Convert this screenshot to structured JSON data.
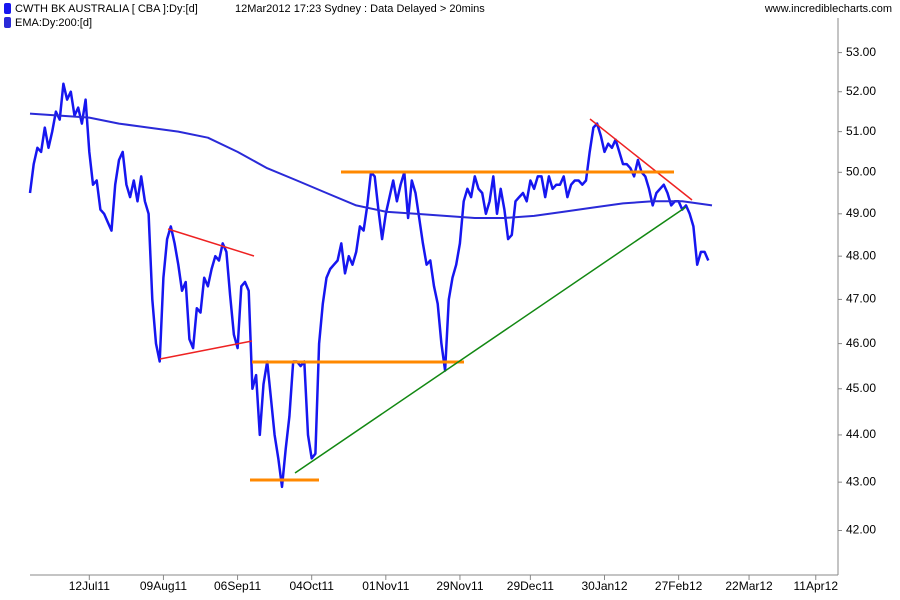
{
  "chart_data": {
    "type": "line",
    "subtitle": "12Mar2012 17:23 Sydney : Data Delayed > 20mins",
    "source": "www.incrediblecharts.com",
    "log_scale": true,
    "xlim": [
      0,
      218
    ],
    "xticks": [
      {
        "value": 16,
        "label": "12Jul11"
      },
      {
        "value": 36,
        "label": "09Aug11"
      },
      {
        "value": 56,
        "label": "06Sep11"
      },
      {
        "value": 76,
        "label": "04Oct11"
      },
      {
        "value": 96,
        "label": "01Nov11"
      },
      {
        "value": 116,
        "label": "29Nov11"
      },
      {
        "value": 135,
        "label": "29Dec11"
      },
      {
        "value": 155,
        "label": "30Jan12"
      },
      {
        "value": 175,
        "label": "27Feb12"
      },
      {
        "value": 194,
        "label": "22Mar12"
      },
      {
        "value": 212,
        "label": "11Apr12"
      }
    ],
    "ylim": [
      41.1,
      53.9
    ],
    "yticks": [
      {
        "value": 42,
        "label": "42.00"
      },
      {
        "value": 43,
        "label": "43.00"
      },
      {
        "value": 44,
        "label": "44.00"
      },
      {
        "value": 45,
        "label": "45.00"
      },
      {
        "value": 46,
        "label": "46.00"
      },
      {
        "value": 47,
        "label": "47.00"
      },
      {
        "value": 48,
        "label": "48.00"
      },
      {
        "value": 49,
        "label": "49.00"
      },
      {
        "value": 50,
        "label": "50.00"
      },
      {
        "value": 51,
        "label": "51.00"
      },
      {
        "value": 52,
        "label": "52.00"
      },
      {
        "value": 53,
        "label": "53.00"
      }
    ],
    "series": [
      {
        "name": "CWTH BK AUSTRALIA [ CBA ]:Dy:[d]",
        "color": "#1616f0",
        "x": [
          0,
          1,
          2,
          3,
          4,
          5,
          6,
          7,
          8,
          9,
          10,
          11,
          12,
          13,
          14,
          15,
          16,
          17,
          18,
          19,
          20,
          21,
          22,
          23,
          24,
          25,
          26,
          27,
          28,
          29,
          30,
          31,
          32,
          33,
          34,
          35,
          36,
          37,
          38,
          39,
          40,
          41,
          42,
          43,
          44,
          45,
          46,
          47,
          48,
          49,
          50,
          51,
          52,
          53,
          54,
          55,
          56,
          57,
          58,
          59,
          60,
          61,
          62,
          63,
          64,
          65,
          66,
          67,
          68,
          69,
          70,
          71,
          72,
          73,
          74,
          75,
          76,
          77,
          78,
          79,
          80,
          81,
          82,
          83,
          84,
          85,
          86,
          87,
          88,
          89,
          90,
          91,
          92,
          93,
          94,
          95,
          96,
          97,
          98,
          99,
          100,
          101,
          102,
          103,
          104,
          105,
          106,
          107,
          108,
          109,
          110,
          111,
          112,
          113,
          114,
          115,
          116,
          117,
          118,
          119,
          120,
          121,
          122,
          123,
          124,
          125,
          126,
          127,
          128,
          129,
          130,
          131,
          132,
          133,
          134,
          135,
          136,
          137,
          138,
          139,
          140,
          141,
          142,
          143,
          144,
          145,
          146,
          147,
          148,
          149,
          150,
          151,
          152,
          153,
          154,
          155,
          156,
          157,
          158,
          159,
          160,
          161,
          162,
          163,
          164,
          165,
          166,
          167,
          168,
          169,
          170,
          171,
          172,
          173,
          174,
          175,
          176,
          177,
          178,
          179,
          180,
          181,
          182,
          183
        ],
        "values": [
          49.5,
          50.2,
          50.6,
          50.5,
          51.1,
          50.6,
          51.0,
          51.5,
          51.3,
          52.2,
          51.8,
          52.0,
          51.4,
          51.6,
          51.2,
          51.8,
          50.5,
          49.7,
          49.8,
          49.1,
          49.0,
          48.8,
          48.6,
          49.7,
          50.3,
          50.5,
          49.7,
          49.4,
          49.8,
          49.3,
          49.9,
          49.3,
          49.0,
          47.0,
          46.0,
          45.6,
          47.5,
          48.4,
          48.7,
          48.3,
          47.8,
          47.2,
          47.4,
          46.1,
          45.9,
          46.8,
          46.7,
          47.5,
          47.3,
          47.7,
          48.0,
          47.9,
          48.3,
          48.1,
          47.1,
          46.2,
          45.9,
          47.3,
          47.4,
          47.2,
          45.0,
          45.3,
          44.0,
          45.1,
          45.6,
          44.8,
          44.0,
          43.5,
          42.9,
          43.7,
          44.4,
          45.6,
          45.6,
          45.5,
          45.6,
          44.0,
          43.5,
          43.6,
          46.0,
          46.9,
          47.5,
          47.7,
          47.8,
          47.9,
          48.3,
          47.6,
          48.0,
          47.8,
          48.1,
          48.7,
          48.6,
          49.2,
          50.0,
          49.9,
          49.1,
          48.4,
          49.0,
          49.4,
          49.8,
          49.3,
          49.7,
          50.0,
          48.9,
          49.8,
          49.5,
          48.9,
          48.3,
          47.8,
          47.9,
          47.3,
          46.9,
          46.0,
          45.4,
          47.0,
          47.5,
          47.8,
          48.3,
          49.3,
          49.6,
          49.4,
          49.9,
          49.6,
          49.5,
          49.0,
          49.3,
          49.9,
          49.0,
          49.6,
          49.1,
          48.4,
          48.5,
          49.3,
          49.4,
          49.5,
          49.3,
          49.8,
          49.6,
          49.9,
          49.9,
          49.4,
          49.9,
          49.6,
          49.7,
          49.7,
          49.9,
          49.4,
          49.7,
          49.8,
          49.8,
          49.7,
          49.8,
          50.5,
          51.1,
          51.2,
          50.9,
          50.5,
          50.7,
          50.6,
          50.8,
          50.5,
          50.2,
          50.2,
          50.1,
          49.9,
          50.3,
          50.0,
          49.9,
          49.6,
          49.2,
          49.5,
          49.6,
          49.7,
          49.5,
          49.2,
          49.3,
          49.3,
          49.1,
          49.2,
          49.0,
          48.7,
          47.8,
          48.1,
          48.1,
          47.9
        ]
      },
      {
        "name": "EMA:Dy:200:[d]",
        "color": "#2a2ad8",
        "x": [
          0,
          8,
          16,
          24,
          32,
          40,
          48,
          56,
          64,
          72,
          80,
          88,
          96,
          104,
          112,
          120,
          128,
          136,
          144,
          152,
          160,
          168,
          176,
          184
        ],
        "values": [
          51.45,
          51.4,
          51.35,
          51.2,
          51.1,
          51.0,
          50.85,
          50.5,
          50.1,
          49.8,
          49.5,
          49.2,
          49.05,
          49.0,
          48.95,
          48.9,
          48.9,
          48.95,
          49.05,
          49.15,
          49.25,
          49.3,
          49.3,
          49.2
        ]
      }
    ]
  }
}
